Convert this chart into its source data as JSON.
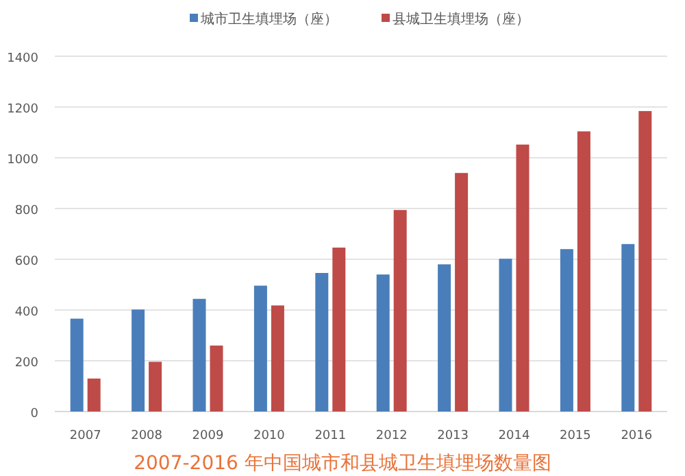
{
  "chart_data": {
    "type": "bar",
    "title": "2007-2016 年中国城市和县城卫生填埋场数量图",
    "categories": [
      "2007",
      "2008",
      "2009",
      "2010",
      "2011",
      "2012",
      "2013",
      "2014",
      "2015",
      "2016"
    ],
    "series": [
      {
        "name": "城市卫生填埋场（座）",
        "color": "#4a7ebb",
        "values": [
          366,
          402,
          444,
          496,
          546,
          540,
          580,
          602,
          640,
          660
        ]
      },
      {
        "name": "县城卫生填埋场（座）",
        "color": "#be4b48",
        "values": [
          130,
          196,
          260,
          418,
          646,
          794,
          940,
          1052,
          1104,
          1184
        ]
      }
    ],
    "ylim": [
      0,
      1400
    ],
    "yticks": [
      0,
      200,
      400,
      600,
      800,
      1000,
      1200,
      1400
    ],
    "grid": "y",
    "legend": "top"
  }
}
